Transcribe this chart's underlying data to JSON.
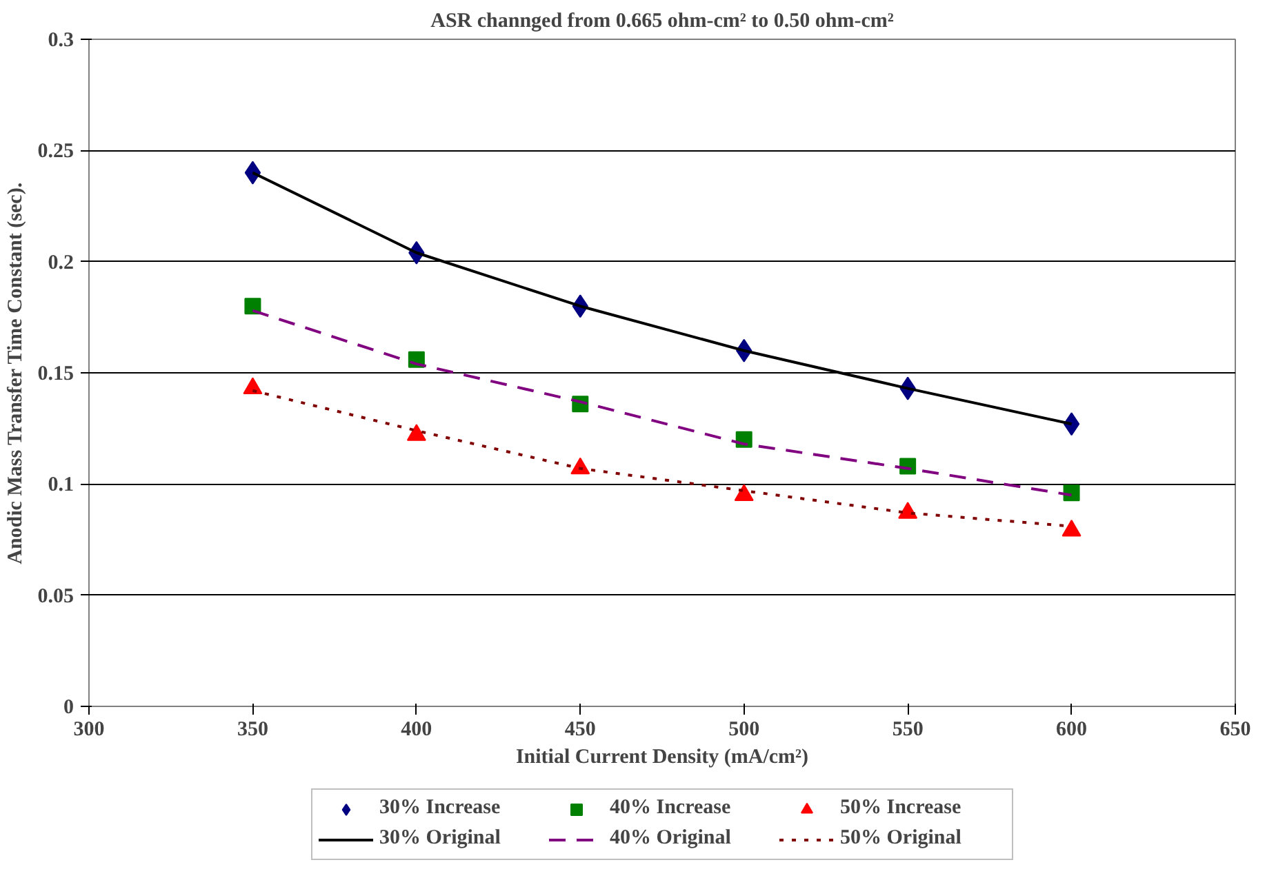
{
  "chart_data": {
    "type": "scatter",
    "title": "ASR channged from 0.665 ohm-cm² to 0.50 ohm-cm²",
    "xlabel": "Initial Current Density (mA/cm²)",
    "ylabel": "Anodic Mass Transfer Time Constant (sec).",
    "x": [
      350,
      400,
      450,
      500,
      550,
      600
    ],
    "xlim": [
      300,
      650
    ],
    "xticks": [
      300,
      350,
      400,
      450,
      500,
      550,
      600,
      650
    ],
    "ylim": [
      0,
      0.3
    ],
    "yticks": [
      0,
      0.05,
      0.1,
      0.15,
      0.2,
      0.25,
      0.3
    ],
    "grid": "y",
    "legend": "bottom",
    "series": [
      {
        "name": "30% Increase",
        "marker": "diamond",
        "color": "#000080",
        "values": [
          0.24,
          0.204,
          0.18,
          0.16,
          0.143,
          0.127
        ]
      },
      {
        "name": "40% Increase",
        "marker": "square",
        "color": "#008000",
        "values": [
          0.18,
          0.156,
          0.136,
          0.12,
          0.108,
          0.096
        ]
      },
      {
        "name": "50% Increase",
        "marker": "triangle",
        "color": "#ff0000",
        "values": [
          0.143,
          0.122,
          0.107,
          0.095,
          0.087,
          0.079
        ]
      },
      {
        "name": "30% Original",
        "type": "line",
        "line_style": "solid",
        "color": "#000000",
        "values": [
          0.24,
          0.204,
          0.18,
          0.16,
          0.143,
          0.127
        ]
      },
      {
        "name": "40% Original",
        "type": "line",
        "line_style": "dashed",
        "color": "#800080",
        "values": [
          0.178,
          0.154,
          0.137,
          0.118,
          0.107,
          0.095
        ]
      },
      {
        "name": "50% Original",
        "type": "line",
        "line_style": "dotted",
        "color": "#800000",
        "values": [
          0.142,
          0.124,
          0.107,
          0.097,
          0.087,
          0.081
        ]
      }
    ]
  }
}
